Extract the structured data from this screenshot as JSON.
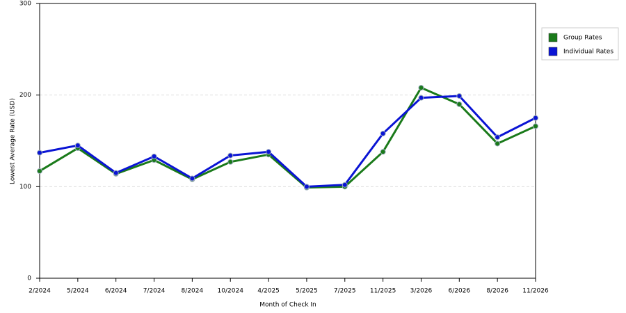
{
  "chart_data": {
    "type": "line",
    "x_label": "Month of Check In",
    "y_label": "Lowest Average Rate (USD)",
    "categories": [
      "2/2024",
      "5/2024",
      "6/2024",
      "7/2024",
      "8/2024",
      "10/2024",
      "4/2025",
      "5/2025",
      "7/2025",
      "11/2025",
      "3/2026",
      "6/2026",
      "8/2026",
      "11/2026"
    ],
    "series": [
      {
        "name": "Group Rates",
        "color": "#1a7a1a",
        "values": [
          117,
          142,
          114,
          129,
          108,
          127,
          135,
          99,
          100,
          138,
          208,
          190,
          147,
          166
        ]
      },
      {
        "name": "Individual Rates",
        "color": "#0a14d4",
        "values": [
          137,
          145,
          115,
          133,
          109,
          134,
          138,
          100,
          102,
          158,
          197,
          199,
          154,
          175
        ]
      }
    ],
    "ylim": [
      0,
      300
    ],
    "yticks": [
      0,
      100,
      200,
      300
    ],
    "grid": true,
    "legend": "right"
  }
}
